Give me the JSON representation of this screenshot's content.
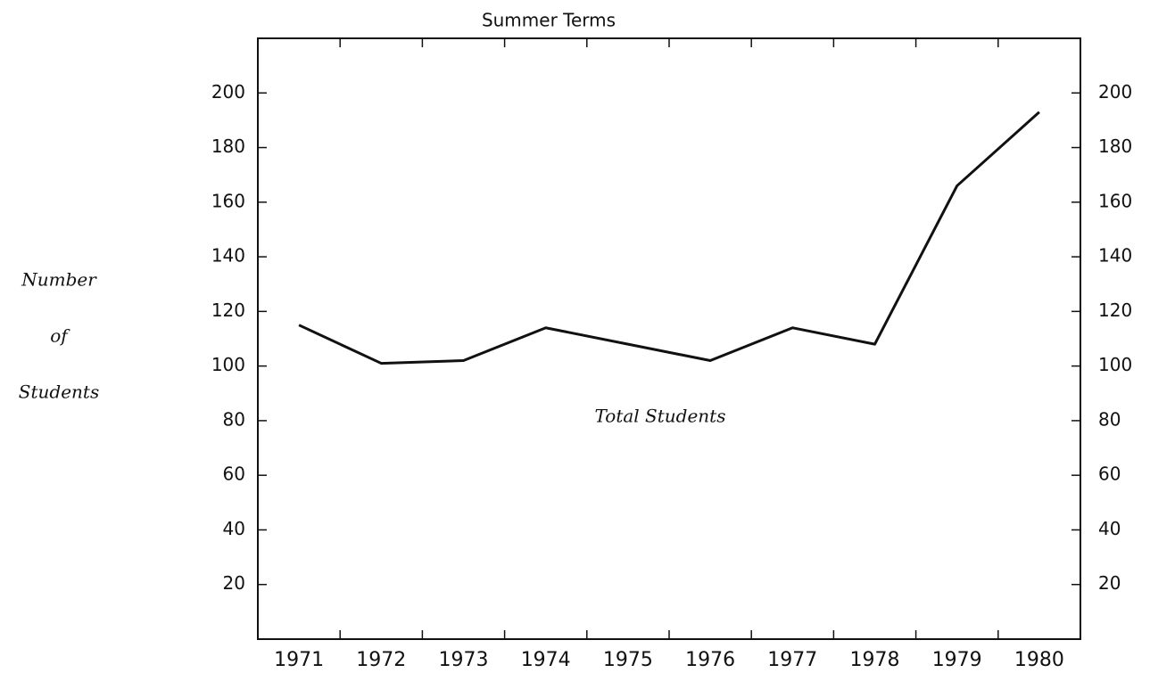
{
  "chart_data": {
    "type": "line",
    "title": "Summer Terms",
    "ylabel": [
      "Number",
      "of",
      "Students"
    ],
    "annotation": "Total Students",
    "categories": [
      "1971",
      "1972",
      "1973",
      "1974",
      "1975",
      "1976",
      "1977",
      "1978",
      "1979",
      "1980"
    ],
    "series": [
      {
        "name": "Total Students",
        "color": "#111111",
        "values": [
          115,
          101,
          102,
          114,
          108,
          102,
          114,
          108,
          166,
          193
        ]
      }
    ],
    "ylim": [
      0,
      220
    ],
    "yticks": [
      20,
      40,
      60,
      80,
      100,
      120,
      140,
      160,
      180,
      200
    ],
    "y2lim": [
      0,
      220
    ],
    "y2ticks": [
      20,
      40,
      60,
      80,
      100,
      120,
      140,
      160,
      180,
      200
    ],
    "grid": false
  }
}
